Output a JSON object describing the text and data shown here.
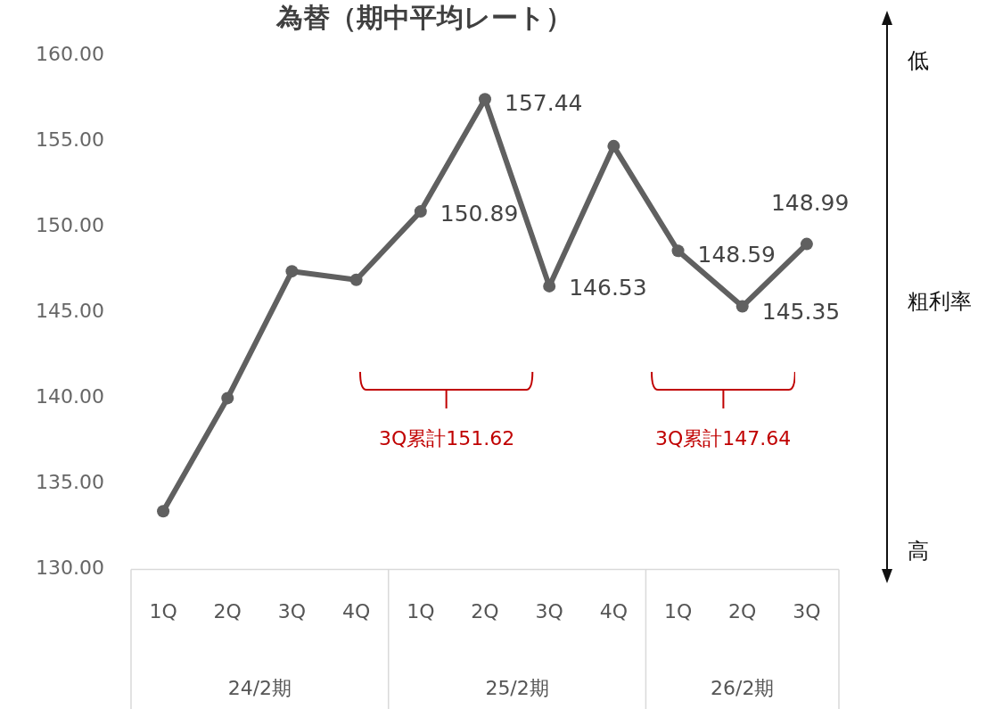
{
  "chart_data": {
    "type": "line",
    "title": "為替（期中平均レート）",
    "categories": [
      "1Q",
      "2Q",
      "3Q",
      "4Q",
      "1Q",
      "2Q",
      "3Q",
      "4Q",
      "1Q",
      "2Q",
      "3Q"
    ],
    "series": [
      {
        "color": "#606060",
        "values": [
          133.4,
          140.0,
          147.4,
          146.9,
          150.89,
          157.44,
          146.53,
          154.7,
          148.59,
          145.35,
          148.99
        ],
        "value_labels": [
          null,
          null,
          null,
          null,
          "150.89",
          "157.44",
          "146.53",
          null,
          "148.59",
          "145.35",
          "148.99"
        ]
      }
    ],
    "ylim": [
      130,
      160
    ],
    "yticks": [
      {
        "value": 130,
        "label": "130.00"
      },
      {
        "value": 135,
        "label": "135.00"
      },
      {
        "value": 140,
        "label": "140.00"
      },
      {
        "value": 145,
        "label": "145.00"
      },
      {
        "value": 150,
        "label": "150.00"
      },
      {
        "value": 155,
        "label": "155.00"
      },
      {
        "value": 160,
        "label": "160.00"
      }
    ],
    "grid": false,
    "legend": false,
    "marker": "circle",
    "line_style": "solid",
    "annotations": [
      "3Q累計151.62",
      "3Q累計147.64",
      "24/2期",
      "25/2期",
      "26/2期",
      "低",
      "粗利率",
      "高"
    ]
  }
}
